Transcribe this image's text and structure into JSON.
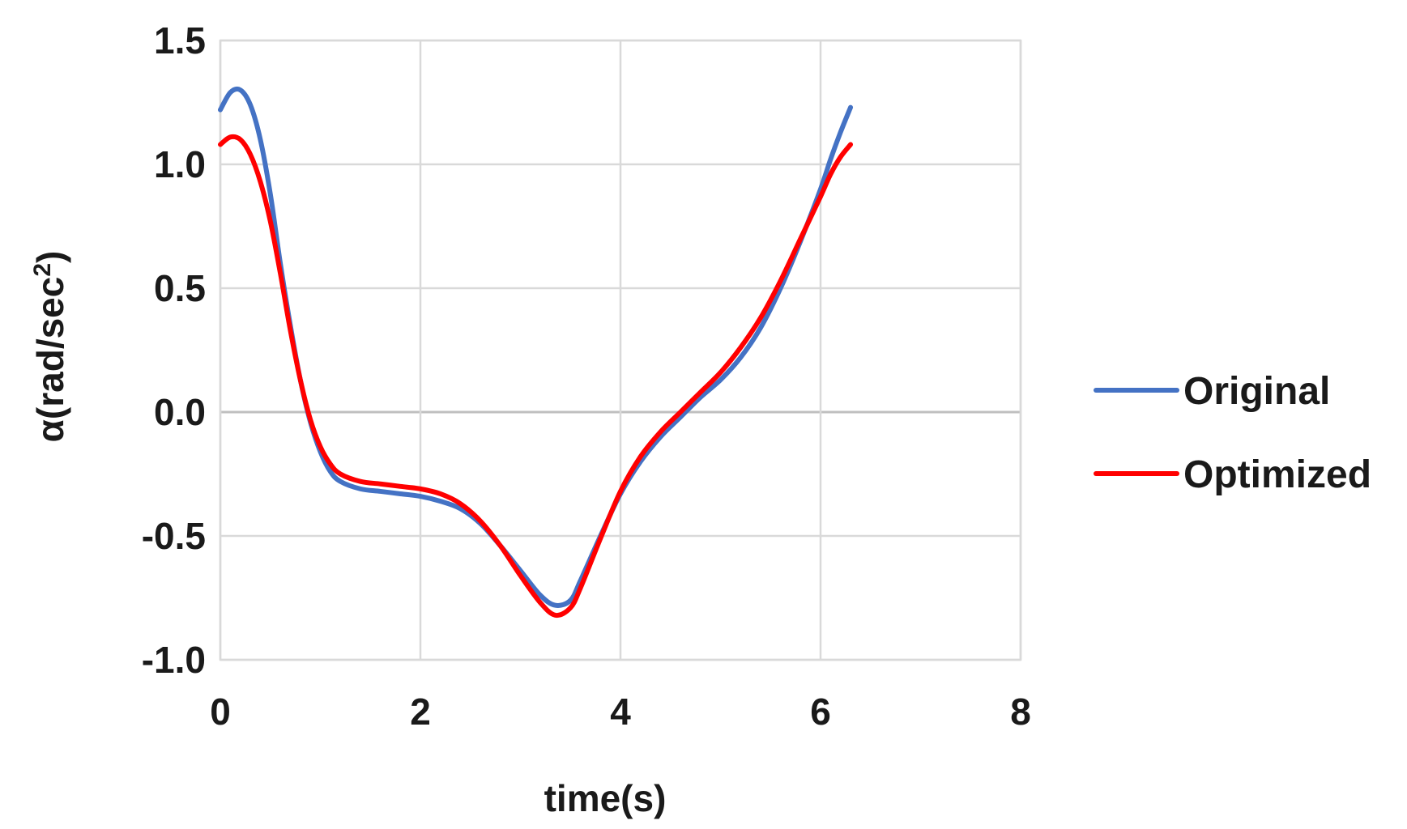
{
  "chart_data": {
    "type": "line",
    "xlabel": "time(s)",
    "ylabel_prefix": "α(rad/sec",
    "ylabel_sup": "2",
    "ylabel_suffix": ")",
    "xlim": [
      0,
      8
    ],
    "ylim": [
      -1.0,
      1.5
    ],
    "x_ticks": [
      0,
      2,
      4,
      6,
      8
    ],
    "x_tick_labels": [
      "0",
      "2",
      "4",
      "6",
      "8"
    ],
    "y_ticks": [
      -1.0,
      -0.5,
      0.0,
      0.5,
      1.0,
      1.5
    ],
    "y_tick_labels": [
      "-1.0",
      "-0.5",
      "0.0",
      "0.5",
      "1.0",
      "1.5"
    ],
    "grid": true,
    "legend_position": "right",
    "series": [
      {
        "name": "Original",
        "color": "#4472c4",
        "points": [
          [
            0.0,
            1.22
          ],
          [
            0.1,
            1.29
          ],
          [
            0.2,
            1.3
          ],
          [
            0.3,
            1.24
          ],
          [
            0.4,
            1.1
          ],
          [
            0.5,
            0.88
          ],
          [
            0.6,
            0.6
          ],
          [
            0.7,
            0.35
          ],
          [
            0.8,
            0.13
          ],
          [
            0.9,
            -0.04
          ],
          [
            1.0,
            -0.16
          ],
          [
            1.1,
            -0.24
          ],
          [
            1.2,
            -0.28
          ],
          [
            1.4,
            -0.31
          ],
          [
            1.6,
            -0.32
          ],
          [
            1.8,
            -0.33
          ],
          [
            2.0,
            -0.34
          ],
          [
            2.2,
            -0.36
          ],
          [
            2.4,
            -0.39
          ],
          [
            2.6,
            -0.45
          ],
          [
            2.8,
            -0.54
          ],
          [
            3.0,
            -0.64
          ],
          [
            3.2,
            -0.74
          ],
          [
            3.35,
            -0.78
          ],
          [
            3.5,
            -0.76
          ],
          [
            3.6,
            -0.68
          ],
          [
            3.8,
            -0.5
          ],
          [
            4.0,
            -0.33
          ],
          [
            4.2,
            -0.2
          ],
          [
            4.4,
            -0.1
          ],
          [
            4.6,
            -0.02
          ],
          [
            4.8,
            0.06
          ],
          [
            5.0,
            0.13
          ],
          [
            5.2,
            0.22
          ],
          [
            5.4,
            0.34
          ],
          [
            5.6,
            0.5
          ],
          [
            5.8,
            0.69
          ],
          [
            6.0,
            0.9
          ],
          [
            6.1,
            1.02
          ],
          [
            6.2,
            1.13
          ],
          [
            6.3,
            1.23
          ]
        ]
      },
      {
        "name": "Optimized",
        "color": "#ff0000",
        "points": [
          [
            0.0,
            1.08
          ],
          [
            0.1,
            1.11
          ],
          [
            0.2,
            1.1
          ],
          [
            0.3,
            1.04
          ],
          [
            0.4,
            0.93
          ],
          [
            0.5,
            0.77
          ],
          [
            0.6,
            0.56
          ],
          [
            0.7,
            0.33
          ],
          [
            0.8,
            0.13
          ],
          [
            0.9,
            -0.03
          ],
          [
            1.0,
            -0.14
          ],
          [
            1.1,
            -0.21
          ],
          [
            1.2,
            -0.25
          ],
          [
            1.4,
            -0.28
          ],
          [
            1.6,
            -0.29
          ],
          [
            1.8,
            -0.3
          ],
          [
            2.0,
            -0.31
          ],
          [
            2.2,
            -0.33
          ],
          [
            2.4,
            -0.37
          ],
          [
            2.6,
            -0.44
          ],
          [
            2.8,
            -0.54
          ],
          [
            3.0,
            -0.66
          ],
          [
            3.2,
            -0.77
          ],
          [
            3.35,
            -0.82
          ],
          [
            3.5,
            -0.79
          ],
          [
            3.6,
            -0.71
          ],
          [
            3.8,
            -0.51
          ],
          [
            4.0,
            -0.32
          ],
          [
            4.2,
            -0.18
          ],
          [
            4.4,
            -0.08
          ],
          [
            4.6,
            0.0
          ],
          [
            4.8,
            0.08
          ],
          [
            5.0,
            0.16
          ],
          [
            5.2,
            0.26
          ],
          [
            5.4,
            0.38
          ],
          [
            5.6,
            0.53
          ],
          [
            5.8,
            0.7
          ],
          [
            6.0,
            0.87
          ],
          [
            6.1,
            0.96
          ],
          [
            6.2,
            1.03
          ],
          [
            6.3,
            1.08
          ]
        ]
      }
    ]
  }
}
